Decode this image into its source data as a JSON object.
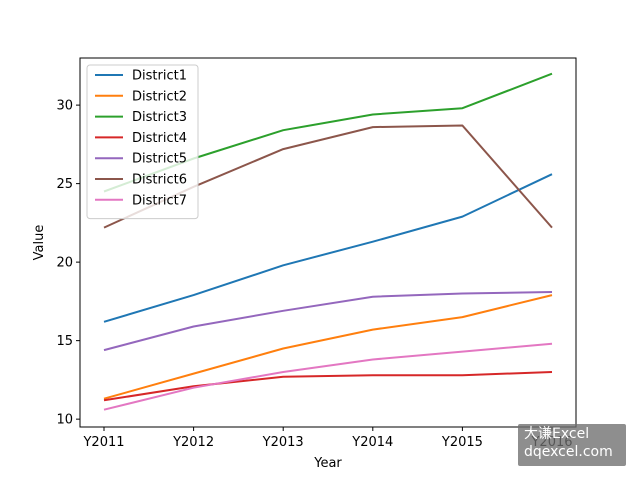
{
  "chart_data": {
    "type": "line",
    "title": "",
    "xlabel": "Year",
    "ylabel": "Value",
    "categories": [
      "Y2011",
      "Y2012",
      "Y2013",
      "Y2014",
      "Y2015",
      "Y2016"
    ],
    "ylim": [
      9.5,
      33
    ],
    "yticks": [
      10,
      15,
      20,
      25,
      30
    ],
    "grid": false,
    "legend_position": "upper-left",
    "series": [
      {
        "name": "District1",
        "color": "#1f77b4",
        "values": [
          16.2,
          17.9,
          19.8,
          21.3,
          22.9,
          25.6
        ]
      },
      {
        "name": "District2",
        "color": "#ff7f0e",
        "values": [
          11.3,
          12.9,
          14.5,
          15.7,
          16.5,
          17.9
        ]
      },
      {
        "name": "District3",
        "color": "#2ca02c",
        "values": [
          24.5,
          26.6,
          28.4,
          29.4,
          29.8,
          32.0
        ]
      },
      {
        "name": "District4",
        "color": "#d62728",
        "values": [
          11.2,
          12.1,
          12.7,
          12.8,
          12.8,
          13.0
        ]
      },
      {
        "name": "District5",
        "color": "#9467bd",
        "values": [
          14.4,
          15.9,
          16.9,
          17.8,
          18.0,
          18.1
        ]
      },
      {
        "name": "District6",
        "color": "#8c564b",
        "values": [
          22.2,
          24.8,
          27.2,
          28.6,
          28.7,
          22.2
        ]
      },
      {
        "name": "District7",
        "color": "#e377c2",
        "values": [
          10.6,
          12.0,
          13.0,
          13.8,
          14.3,
          14.8
        ]
      }
    ]
  },
  "watermark": {
    "line1": "大谦Excel",
    "line2": "dqexcel.com"
  }
}
